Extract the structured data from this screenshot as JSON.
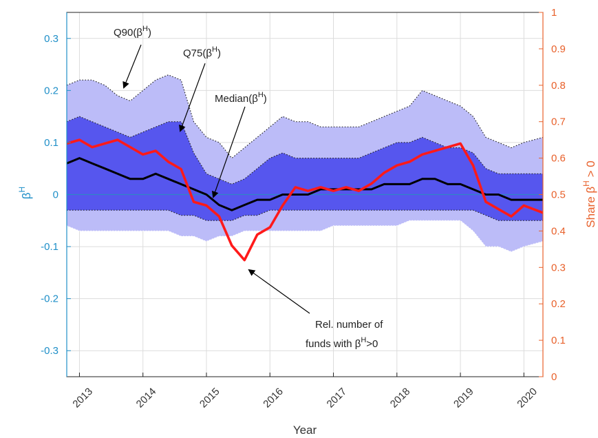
{
  "chart_data": {
    "type": "area",
    "xlabel": "Year",
    "ylabel_left": "βH",
    "ylabel_right": "Share βH > 0",
    "x_ticks": [
      "2013",
      "2014",
      "2015",
      "2016",
      "2017",
      "2018",
      "2019",
      "2020"
    ],
    "xlim": [
      2012.8,
      2020.3
    ],
    "ylim_left": [
      -0.35,
      0.35
    ],
    "yticks_left": [
      "0.3",
      "0.2",
      "0.1",
      "0",
      "-0.1",
      "-0.2",
      "-0.3"
    ],
    "ylim_right": [
      0,
      1
    ],
    "yticks_right": [
      "1",
      "0.9",
      "0.8",
      "0.7",
      "0.6",
      "0.5",
      "0.4",
      "0.3",
      "0.2",
      "0.1",
      "0"
    ],
    "grid": true,
    "colors": {
      "q90_band": "#bcbcf8",
      "q75_band": "#5656ee",
      "median": "#000000",
      "share": "#ff1a1a",
      "zero_line": "#2f86c6",
      "left_axis": "#1f8fc8",
      "right_axis": "#e8602a"
    },
    "x": [
      2012.8,
      2013.0,
      2013.2,
      2013.4,
      2013.6,
      2013.8,
      2014.0,
      2014.2,
      2014.4,
      2014.6,
      2014.8,
      2015.0,
      2015.2,
      2015.4,
      2015.6,
      2015.8,
      2016.0,
      2016.2,
      2016.4,
      2016.6,
      2016.8,
      2017.0,
      2017.2,
      2017.4,
      2017.6,
      2017.8,
      2018.0,
      2018.2,
      2018.4,
      2018.6,
      2018.8,
      2019.0,
      2019.2,
      2019.4,
      2019.6,
      2019.8,
      2020.0,
      2020.3
    ],
    "series": [
      {
        "role": "q90_upper",
        "values": [
          0.21,
          0.22,
          0.22,
          0.21,
          0.19,
          0.18,
          0.2,
          0.22,
          0.23,
          0.22,
          0.14,
          0.11,
          0.1,
          0.07,
          0.09,
          0.11,
          0.13,
          0.15,
          0.14,
          0.14,
          0.13,
          0.13,
          0.13,
          0.13,
          0.14,
          0.15,
          0.16,
          0.17,
          0.2,
          0.19,
          0.18,
          0.17,
          0.15,
          0.11,
          0.1,
          0.09,
          0.1,
          0.11
        ]
      },
      {
        "role": "q75_upper",
        "values": [
          0.14,
          0.15,
          0.14,
          0.13,
          0.12,
          0.11,
          0.12,
          0.13,
          0.14,
          0.14,
          0.08,
          0.04,
          0.03,
          0.02,
          0.03,
          0.05,
          0.07,
          0.08,
          0.07,
          0.07,
          0.07,
          0.07,
          0.07,
          0.07,
          0.08,
          0.09,
          0.1,
          0.1,
          0.11,
          0.1,
          0.09,
          0.09,
          0.08,
          0.05,
          0.04,
          0.04,
          0.04,
          0.04
        ]
      },
      {
        "role": "median",
        "name": "Median(βH)",
        "values": [
          0.06,
          0.07,
          0.06,
          0.05,
          0.04,
          0.03,
          0.03,
          0.04,
          0.03,
          0.02,
          0.01,
          0.0,
          -0.02,
          -0.03,
          -0.02,
          -0.01,
          -0.01,
          0.0,
          0.0,
          0.0,
          0.01,
          0.01,
          0.01,
          0.01,
          0.01,
          0.02,
          0.02,
          0.02,
          0.03,
          0.03,
          0.02,
          0.02,
          0.01,
          0.0,
          0.0,
          -0.01,
          -0.01,
          -0.01
        ]
      },
      {
        "role": "q25_lower",
        "values": [
          -0.03,
          -0.03,
          -0.03,
          -0.03,
          -0.03,
          -0.03,
          -0.03,
          -0.03,
          -0.03,
          -0.04,
          -0.04,
          -0.05,
          -0.05,
          -0.05,
          -0.04,
          -0.04,
          -0.03,
          -0.03,
          -0.03,
          -0.03,
          -0.03,
          -0.03,
          -0.03,
          -0.03,
          -0.03,
          -0.03,
          -0.03,
          -0.03,
          -0.03,
          -0.03,
          -0.03,
          -0.03,
          -0.03,
          -0.04,
          -0.05,
          -0.05,
          -0.05,
          -0.05
        ]
      },
      {
        "role": "q10_lower",
        "values": [
          -0.06,
          -0.07,
          -0.07,
          -0.07,
          -0.07,
          -0.07,
          -0.07,
          -0.07,
          -0.07,
          -0.08,
          -0.08,
          -0.09,
          -0.08,
          -0.08,
          -0.07,
          -0.07,
          -0.07,
          -0.07,
          -0.07,
          -0.07,
          -0.07,
          -0.06,
          -0.06,
          -0.06,
          -0.06,
          -0.06,
          -0.06,
          -0.05,
          -0.05,
          -0.05,
          -0.05,
          -0.05,
          -0.07,
          -0.1,
          -0.1,
          -0.11,
          -0.1,
          -0.09
        ]
      },
      {
        "role": "share_positive",
        "axis": "right",
        "values": [
          0.64,
          0.65,
          0.63,
          0.64,
          0.65,
          0.63,
          0.61,
          0.62,
          0.59,
          0.57,
          0.48,
          0.47,
          0.44,
          0.36,
          0.32,
          0.39,
          0.41,
          0.47,
          0.52,
          0.51,
          0.52,
          0.51,
          0.52,
          0.51,
          0.53,
          0.56,
          0.58,
          0.59,
          0.61,
          0.62,
          0.63,
          0.64,
          0.58,
          0.48,
          0.46,
          0.44,
          0.47,
          0.45
        ]
      }
    ],
    "annotations": [
      {
        "text": "Q90(βH)",
        "base": "Q90(β",
        "sup": "H",
        "tail": ")"
      },
      {
        "text": "Q75(βH)",
        "base": "Q75(β",
        "sup": "H",
        "tail": ")"
      },
      {
        "text": "Median(βH)",
        "base": "Median(β",
        "sup": "H",
        "tail": ")"
      },
      {
        "text": "Rel. number of",
        "line2_base": "funds with β",
        "line2_sup": "H",
        "line2_tail": ">0"
      }
    ]
  }
}
